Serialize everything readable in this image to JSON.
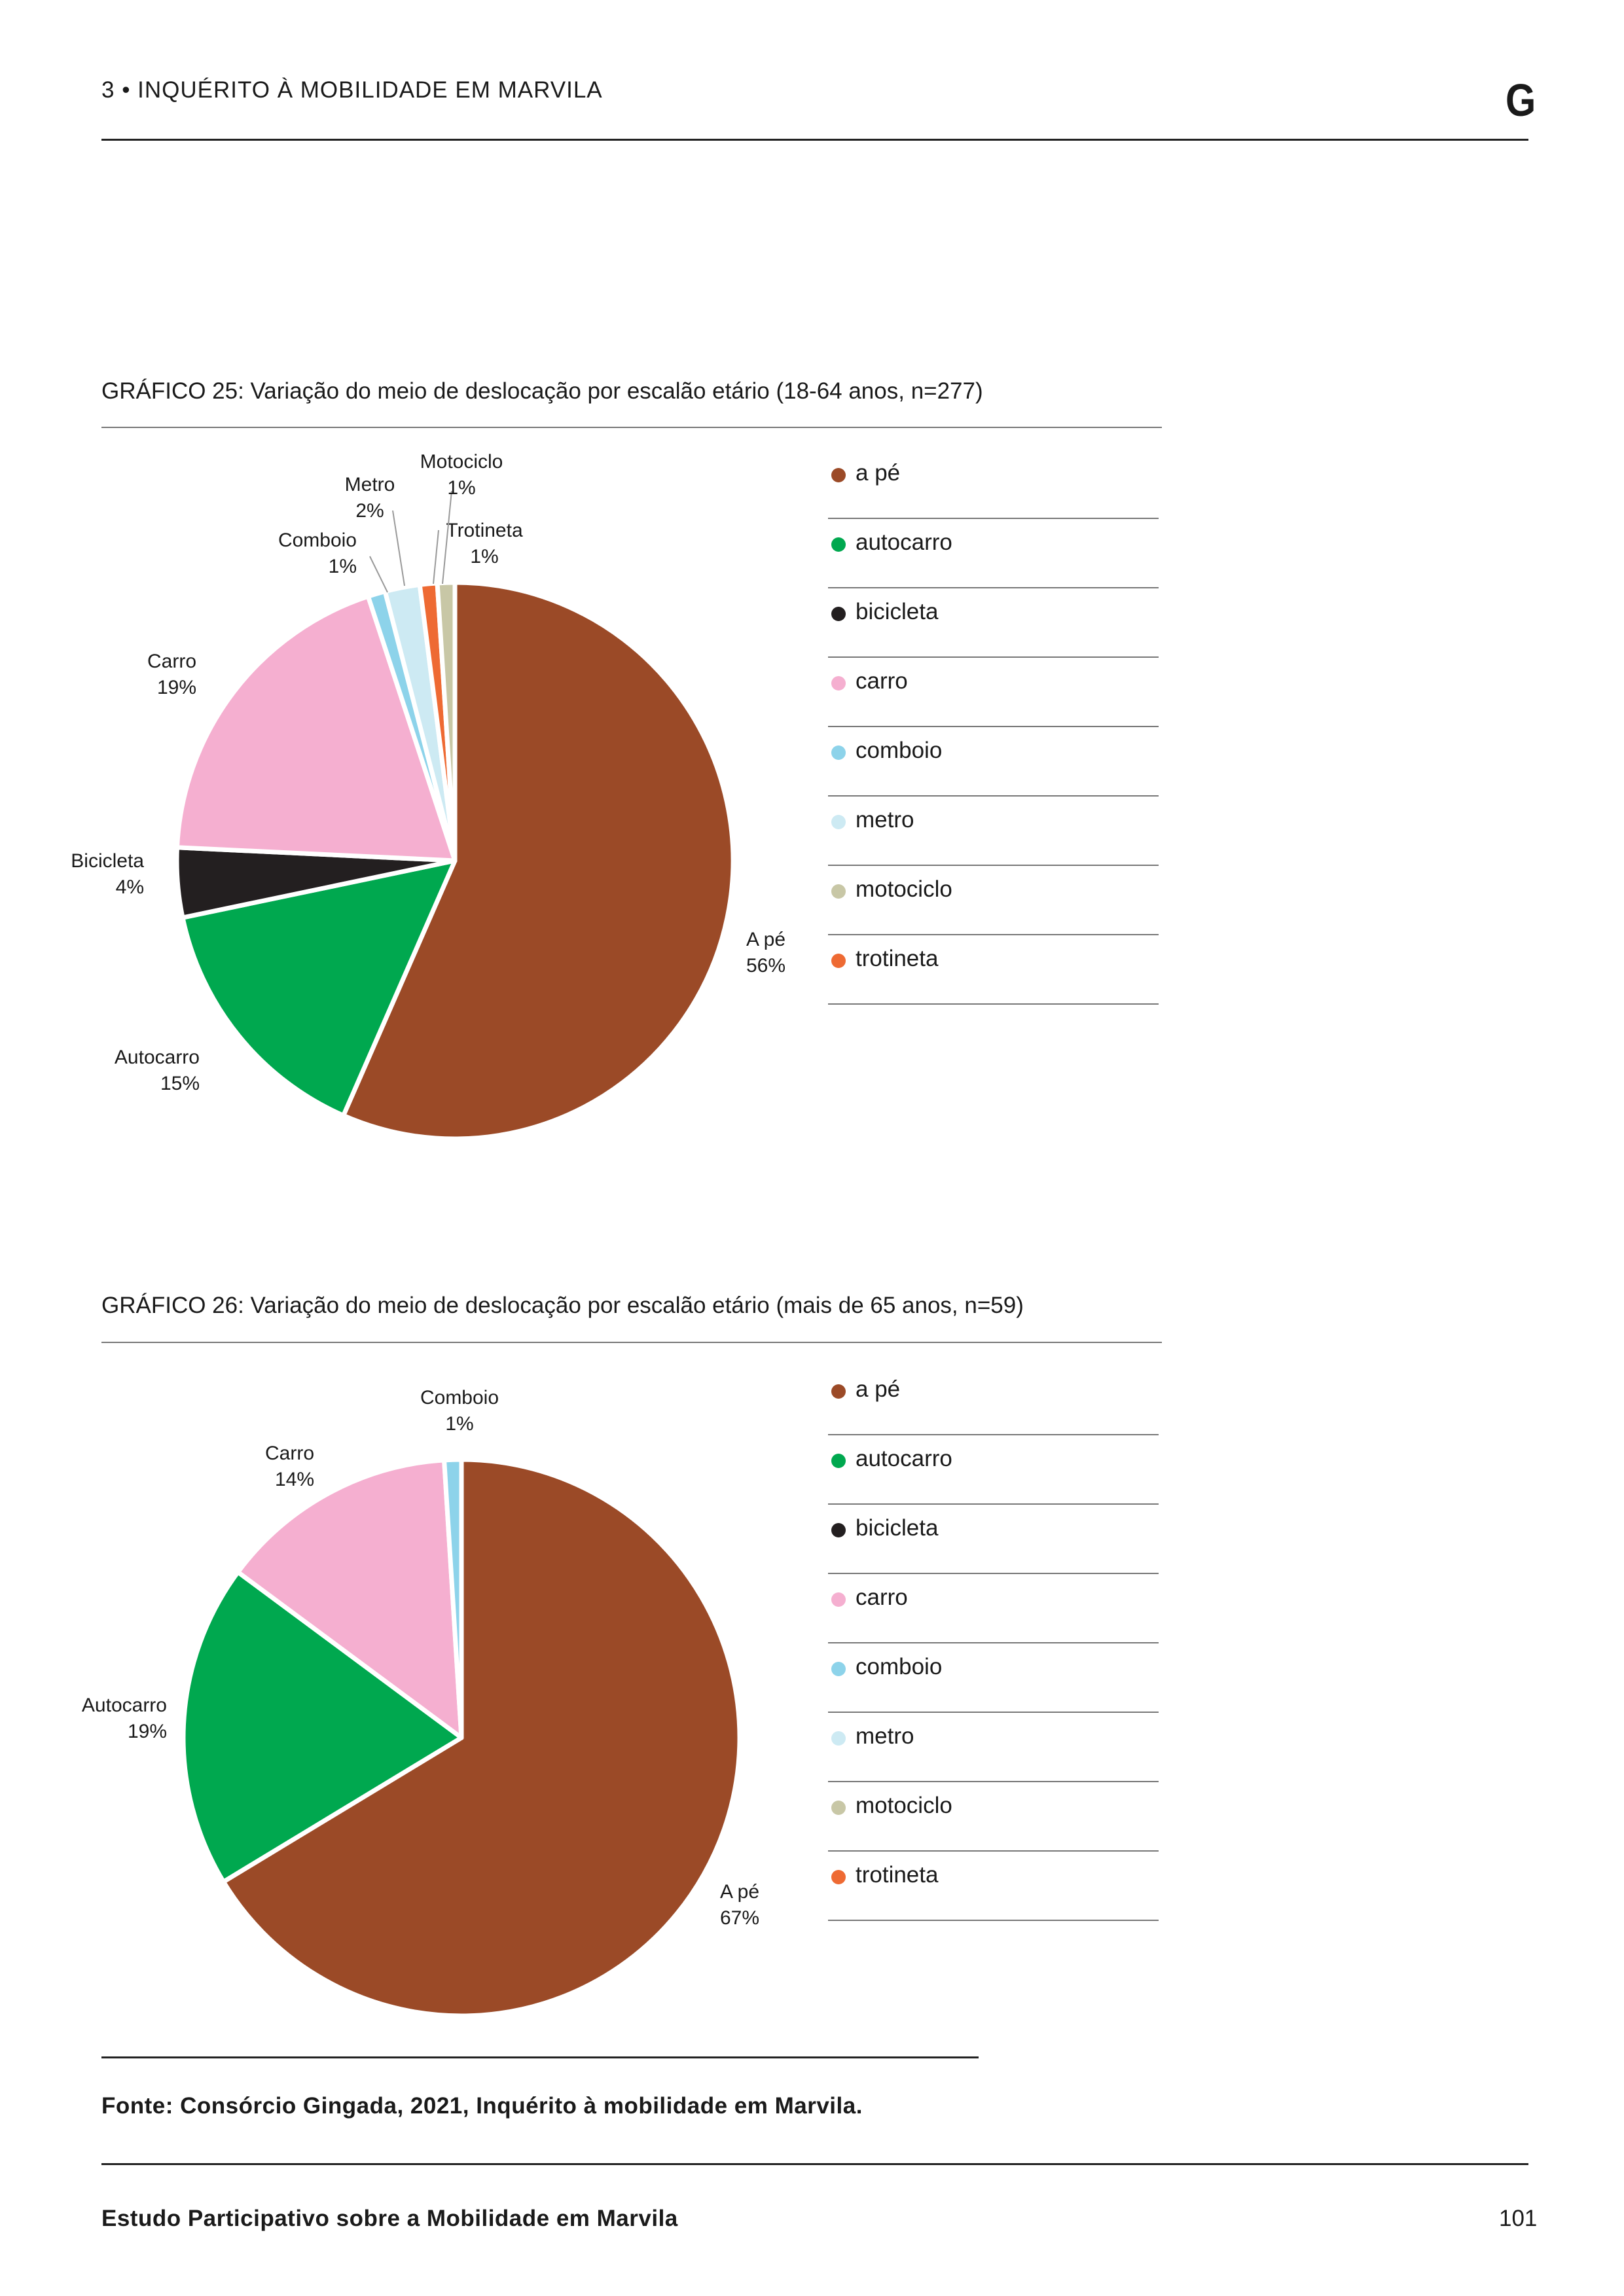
{
  "header": {
    "section_title": "3 • INQUÉRITO À MOBILIDADE EM MARVILA",
    "logo": "G"
  },
  "colors": {
    "a_pe": "#9b4a27",
    "autocarro": "#00a84f",
    "bicicleta": "#231f20",
    "carro": "#f5afd0",
    "comboio": "#8dd3ea",
    "metro": "#cdeaf3",
    "motociclo": "#c8c7a6",
    "trotineta": "#ee6a33"
  },
  "legend": [
    {
      "label": "a pé",
      "color_key": "a_pe"
    },
    {
      "label": "autocarro",
      "color_key": "autocarro"
    },
    {
      "label": "bicicleta",
      "color_key": "bicicleta"
    },
    {
      "label": "carro",
      "color_key": "carro"
    },
    {
      "label": "comboio",
      "color_key": "comboio"
    },
    {
      "label": "metro",
      "color_key": "metro"
    },
    {
      "label": "motociclo",
      "color_key": "motociclo"
    },
    {
      "label": "trotineta",
      "color_key": "trotineta"
    }
  ],
  "chart_data": [
    {
      "type": "pie",
      "title": "GRÁFICO 25: Variação do meio de deslocação por escalão etário (18-64 anos, n=277)",
      "categories": [
        "A pé",
        "Autocarro",
        "Bicicleta",
        "Carro",
        "Comboio",
        "Metro",
        "Trotineta",
        "Motociclo"
      ],
      "color_keys": [
        "a_pe",
        "autocarro",
        "bicicleta",
        "carro",
        "comboio",
        "metro",
        "trotineta",
        "motociclo"
      ],
      "values": [
        56,
        15,
        4,
        19,
        1,
        2,
        1,
        1
      ],
      "data_labels": [
        "56%",
        "15%",
        "4%",
        "19%",
        "1%",
        "2%",
        "1%",
        "1%"
      ],
      "legend_position": "right"
    },
    {
      "type": "pie",
      "title": "GRÁFICO 26: Variação do meio de deslocação  por escalão etário (mais de 65 anos, n=59)",
      "categories": [
        "A pé",
        "Autocarro",
        "Carro",
        "Comboio"
      ],
      "color_keys": [
        "a_pe",
        "autocarro",
        "carro",
        "comboio"
      ],
      "values": [
        67,
        19,
        14,
        1
      ],
      "data_labels": [
        "67%",
        "19%",
        "14%",
        "1%"
      ],
      "legend_position": "right"
    }
  ],
  "source": "Fonte: Consórcio Gingada, 2021, Inquérito à mobilidade em Marvila.",
  "footer": {
    "title": "Estudo Participativo sobre a Mobilidade em Marvila",
    "page_number": "101"
  }
}
